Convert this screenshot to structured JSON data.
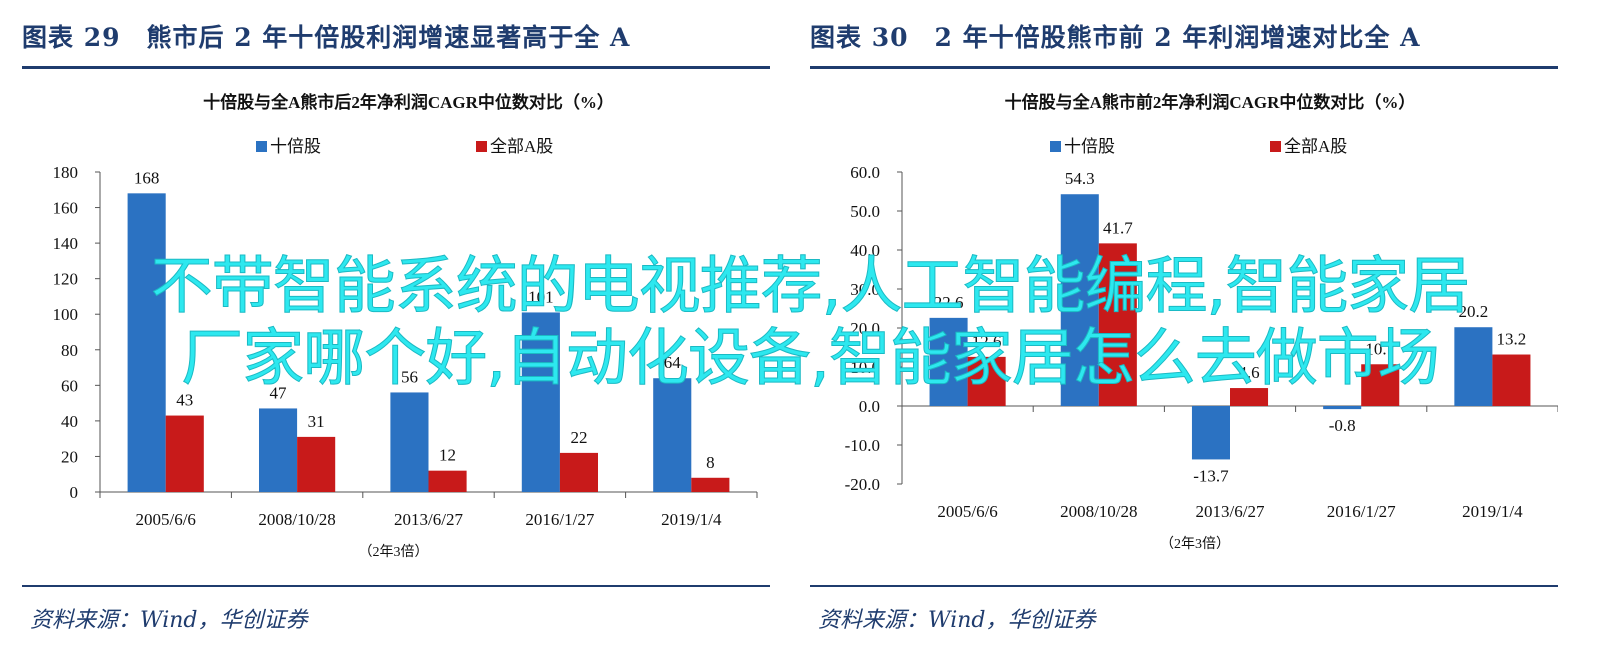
{
  "panels": [
    {
      "fig_title": "图表 29　熊市后 2 年十倍股利润增速显著高于全 A",
      "source": "资料来源：Wind，华创证券"
    },
    {
      "fig_title": "图表 30　2 年十倍股熊市前 2 年利润增速对比全 A",
      "source": "资料来源：Wind，华创证券"
    }
  ],
  "overlay": {
    "line1": "不带智能系统的电视推荐,人工智能编程,智能家居",
    "line2": "厂家哪个好,自动化设备,智能家居怎么去做市场"
  },
  "colors": {
    "tenbagger": "#2b72c2",
    "all_a": "#c81a1a",
    "navy": "#1f3c6e",
    "overlay": "#2de8ef"
  },
  "chart_data": [
    {
      "type": "bar",
      "title": "十倍股与全A熊市后2年净利润CAGR中位数对比（%）",
      "categories": [
        "2005/6/6",
        "2008/10/28",
        "2013/6/27",
        "2016/1/27",
        "2019/1/4"
      ],
      "xlabel": "（2年3倍）",
      "ylabel": "",
      "ylim": [
        0,
        180
      ],
      "yticks": [
        0,
        20,
        40,
        60,
        80,
        100,
        120,
        140,
        160,
        180
      ],
      "ytick_labels": [
        "0",
        "20",
        "40",
        "60",
        "80",
        "100",
        "120",
        "140",
        "160",
        "180"
      ],
      "value_labels": [
        [
          "168",
          "47",
          "56",
          "101",
          "64"
        ],
        [
          "43",
          "31",
          "12",
          "22",
          "8"
        ]
      ],
      "legend_position": "top-center",
      "grid": false,
      "series": [
        {
          "name": "十倍股",
          "values": [
            168,
            47,
            56,
            101,
            64
          ]
        },
        {
          "name": "全部A股",
          "values": [
            43,
            31,
            12,
            22,
            8
          ]
        }
      ]
    },
    {
      "type": "bar",
      "title": "十倍股与全A熊市前2年净利润CAGR中位数对比（%）",
      "categories": [
        "2005/6/6",
        "2008/10/28",
        "2013/6/27",
        "2016/1/27",
        "2019/1/4"
      ],
      "xlabel": "（2年3倍）",
      "ylabel": "",
      "ylim": [
        -20,
        60
      ],
      "yticks": [
        -20,
        -10,
        0,
        10,
        20,
        30,
        40,
        50,
        60
      ],
      "ytick_labels": [
        "-20.0",
        "-10.0",
        "0.0",
        "10.0",
        "20.0",
        "30.0",
        "40.0",
        "50.0",
        "60.0"
      ],
      "value_labels": [
        [
          "22.6",
          "54.3",
          "-13.7",
          "-0.8",
          "20.2"
        ],
        [
          "12.6",
          "41.7",
          "4.6",
          "10.7",
          "13.2"
        ]
      ],
      "legend_position": "top-center",
      "grid": false,
      "series": [
        {
          "name": "十倍股",
          "values": [
            22.6,
            54.3,
            -13.7,
            -0.8,
            20.2
          ]
        },
        {
          "name": "全部A股",
          "values": [
            12.6,
            41.7,
            4.6,
            10.7,
            13.2
          ]
        }
      ]
    }
  ]
}
